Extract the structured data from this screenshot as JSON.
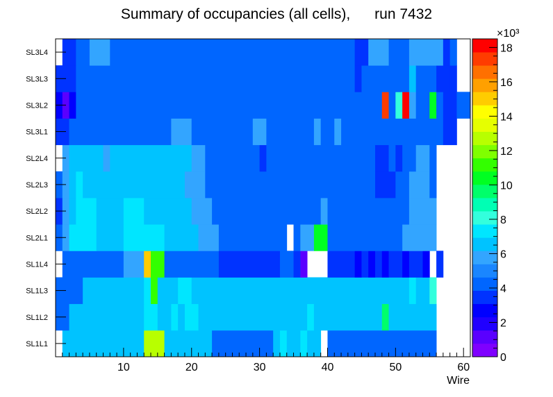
{
  "chart_data": {
    "type": "heatmap",
    "title": "Summary of occupancies (all cells),      run 7432",
    "xlabel": "Wire",
    "ylabel": "",
    "xlim": [
      0,
      61
    ],
    "x_ticks": [
      10,
      20,
      30,
      40,
      50,
      60
    ],
    "y_categories": [
      "SL1L1",
      "SL1L2",
      "SL1L3",
      "SL1L4",
      "SL2L1",
      "SL2L2",
      "SL2L3",
      "SL2L4",
      "SL3L1",
      "SL3L2",
      "SL3L3",
      "SL3L4"
    ],
    "color_scale": {
      "min": 0,
      "max": 18500,
      "exponent_label": "×10³",
      "tick_values": [
        0,
        2,
        4,
        6,
        8,
        10,
        12,
        14,
        16,
        18
      ],
      "palette": [
        "#7f00ff",
        "#5a00ff",
        "#2000ff",
        "#0000ff",
        "#0033ff",
        "#0066ff",
        "#1a86ff",
        "#33a5ff",
        "#00c3ff",
        "#00e6ff",
        "#33ffdd",
        "#00ffb4",
        "#00ff6a",
        "#00ff22",
        "#33ff00",
        "#7fff00",
        "#b8ff00",
        "#e6ff00",
        "#ffff00",
        "#ffcc00",
        "#ffa000",
        "#ff7000",
        "#ff3c00",
        "#ff0000"
      ]
    },
    "grid": false,
    "rows": [
      {
        "layer": "SL1L1",
        "segments": [
          [
            0,
            1,
            null
          ],
          [
            1,
            13,
            6500
          ],
          [
            13,
            14,
            12500
          ],
          [
            14,
            16,
            13000
          ],
          [
            16,
            23,
            6500
          ],
          [
            23,
            32,
            4500
          ],
          [
            32,
            33,
            6500
          ],
          [
            33,
            34,
            7000
          ],
          [
            34,
            36,
            6500
          ],
          [
            36,
            37,
            7000
          ],
          [
            37,
            39,
            6500
          ],
          [
            39,
            40,
            null
          ],
          [
            40,
            56,
            4500
          ],
          [
            56,
            61,
            null
          ]
        ]
      },
      {
        "layer": "SL1L2",
        "segments": [
          [
            0,
            2,
            4500
          ],
          [
            2,
            13,
            6500
          ],
          [
            13,
            15,
            7000
          ],
          [
            15,
            17,
            6500
          ],
          [
            17,
            18,
            7000
          ],
          [
            18,
            19,
            6500
          ],
          [
            19,
            21,
            7000
          ],
          [
            21,
            37,
            6500
          ],
          [
            37,
            38,
            7000
          ],
          [
            38,
            48,
            6500
          ],
          [
            48,
            49,
            9500
          ],
          [
            49,
            56,
            6500
          ],
          [
            56,
            61,
            null
          ]
        ]
      },
      {
        "layer": "SL1L3",
        "segments": [
          [
            0,
            4,
            4500
          ],
          [
            4,
            13,
            6500
          ],
          [
            13,
            14,
            7000
          ],
          [
            14,
            15,
            11500
          ],
          [
            15,
            18,
            6500
          ],
          [
            18,
            20,
            7000
          ],
          [
            20,
            52,
            6500
          ],
          [
            52,
            53,
            7000
          ],
          [
            53,
            55,
            6500
          ],
          [
            55,
            56,
            8000
          ],
          [
            56,
            61,
            null
          ]
        ]
      },
      {
        "layer": "SL1L4",
        "segments": [
          [
            0,
            1,
            null
          ],
          [
            1,
            2,
            4200
          ],
          [
            2,
            4,
            4500
          ],
          [
            4,
            6,
            4200
          ],
          [
            6,
            10,
            4500
          ],
          [
            10,
            13,
            5500
          ],
          [
            13,
            14,
            15000
          ],
          [
            14,
            16,
            11500
          ],
          [
            16,
            24,
            4500
          ],
          [
            24,
            33,
            3500
          ],
          [
            33,
            35,
            4500
          ],
          [
            35,
            36,
            3500
          ],
          [
            36,
            37,
            1500
          ],
          [
            37,
            40,
            null
          ],
          [
            40,
            44,
            3500
          ],
          [
            44,
            45,
            2500
          ],
          [
            45,
            46,
            3500
          ],
          [
            46,
            47,
            2500
          ],
          [
            47,
            48,
            3500
          ],
          [
            48,
            49,
            2500
          ],
          [
            49,
            51,
            3500
          ],
          [
            51,
            52,
            2500
          ],
          [
            52,
            54,
            3500
          ],
          [
            54,
            55,
            2500
          ],
          [
            55,
            56,
            null
          ],
          [
            56,
            57,
            3500
          ],
          [
            57,
            61,
            null
          ]
        ]
      },
      {
        "layer": "SL2L1",
        "segments": [
          [
            0,
            1,
            4500
          ],
          [
            1,
            2,
            5500
          ],
          [
            2,
            6,
            7500
          ],
          [
            6,
            10,
            6500
          ],
          [
            10,
            16,
            7500
          ],
          [
            16,
            21,
            6500
          ],
          [
            21,
            24,
            5500
          ],
          [
            24,
            34,
            4500
          ],
          [
            34,
            35,
            null
          ],
          [
            35,
            36,
            4500
          ],
          [
            36,
            38,
            5500
          ],
          [
            38,
            40,
            10500
          ],
          [
            40,
            51,
            4500
          ],
          [
            51,
            56,
            5500
          ],
          [
            56,
            57,
            null
          ],
          [
            57,
            61,
            null
          ]
        ]
      },
      {
        "layer": "SL2L2",
        "segments": [
          [
            0,
            1,
            3500
          ],
          [
            1,
            2,
            5500
          ],
          [
            2,
            3,
            6500
          ],
          [
            3,
            6,
            7500
          ],
          [
            6,
            10,
            6500
          ],
          [
            10,
            13,
            7500
          ],
          [
            13,
            20,
            6500
          ],
          [
            20,
            23,
            5500
          ],
          [
            23,
            39,
            4500
          ],
          [
            39,
            40,
            5500
          ],
          [
            40,
            52,
            4500
          ],
          [
            52,
            56,
            5500
          ],
          [
            56,
            61,
            null
          ]
        ]
      },
      {
        "layer": "SL2L3",
        "segments": [
          [
            0,
            1,
            4500
          ],
          [
            1,
            2,
            5500
          ],
          [
            2,
            3,
            6500
          ],
          [
            3,
            4,
            7500
          ],
          [
            4,
            19,
            6500
          ],
          [
            19,
            22,
            5500
          ],
          [
            22,
            47,
            4500
          ],
          [
            47,
            50,
            3500
          ],
          [
            50,
            52,
            4500
          ],
          [
            52,
            55,
            5500
          ],
          [
            55,
            56,
            4500
          ],
          [
            56,
            61,
            null
          ]
        ]
      },
      {
        "layer": "SL2L4",
        "segments": [
          [
            0,
            1,
            null
          ],
          [
            1,
            2,
            5500
          ],
          [
            2,
            7,
            6500
          ],
          [
            7,
            8,
            5500
          ],
          [
            8,
            20,
            6500
          ],
          [
            20,
            22,
            5500
          ],
          [
            22,
            30,
            4500
          ],
          [
            30,
            31,
            3500
          ],
          [
            31,
            47,
            4500
          ],
          [
            47,
            49,
            3500
          ],
          [
            49,
            50,
            4500
          ],
          [
            50,
            51,
            3500
          ],
          [
            51,
            53,
            4500
          ],
          [
            53,
            55,
            5500
          ],
          [
            55,
            56,
            4500
          ],
          [
            56,
            61,
            null
          ]
        ]
      },
      {
        "layer": "SL3L1",
        "segments": [
          [
            0,
            2,
            3500
          ],
          [
            2,
            17,
            4500
          ],
          [
            17,
            20,
            5500
          ],
          [
            20,
            29,
            4500
          ],
          [
            29,
            31,
            5500
          ],
          [
            31,
            38,
            4500
          ],
          [
            38,
            39,
            5500
          ],
          [
            39,
            41,
            4500
          ],
          [
            41,
            42,
            5500
          ],
          [
            42,
            57,
            4500
          ],
          [
            57,
            59,
            3500
          ],
          [
            59,
            61,
            null
          ]
        ]
      },
      {
        "layer": "SL3L2",
        "segments": [
          [
            0,
            1,
            2500
          ],
          [
            1,
            2,
            1500
          ],
          [
            2,
            3,
            2500
          ],
          [
            3,
            4,
            4500
          ],
          [
            4,
            48,
            4500
          ],
          [
            48,
            49,
            17000
          ],
          [
            49,
            50,
            4500
          ],
          [
            50,
            51,
            8000
          ],
          [
            51,
            52,
            18500
          ],
          [
            52,
            53,
            5500
          ],
          [
            53,
            55,
            4500
          ],
          [
            55,
            56,
            10500
          ],
          [
            56,
            57,
            4500
          ],
          [
            57,
            59,
            3500
          ],
          [
            59,
            61,
            4500
          ]
        ]
      },
      {
        "layer": "SL3L3",
        "segments": [
          [
            0,
            3,
            3500
          ],
          [
            3,
            4,
            4500
          ],
          [
            4,
            44,
            4500
          ],
          [
            44,
            45,
            3500
          ],
          [
            45,
            52,
            4500
          ],
          [
            52,
            53,
            6500
          ],
          [
            53,
            56,
            4500
          ],
          [
            56,
            58,
            3500
          ],
          [
            58,
            59,
            3500
          ],
          [
            59,
            61,
            null
          ]
        ]
      },
      {
        "layer": "SL3L4",
        "segments": [
          [
            0,
            1,
            null
          ],
          [
            1,
            3,
            3500
          ],
          [
            3,
            5,
            4500
          ],
          [
            5,
            8,
            5500
          ],
          [
            8,
            44,
            4500
          ],
          [
            44,
            46,
            3500
          ],
          [
            46,
            49,
            5500
          ],
          [
            49,
            52,
            4500
          ],
          [
            52,
            57,
            5500
          ],
          [
            57,
            58,
            3500
          ],
          [
            58,
            59,
            4500
          ],
          [
            59,
            61,
            null
          ]
        ]
      }
    ]
  }
}
